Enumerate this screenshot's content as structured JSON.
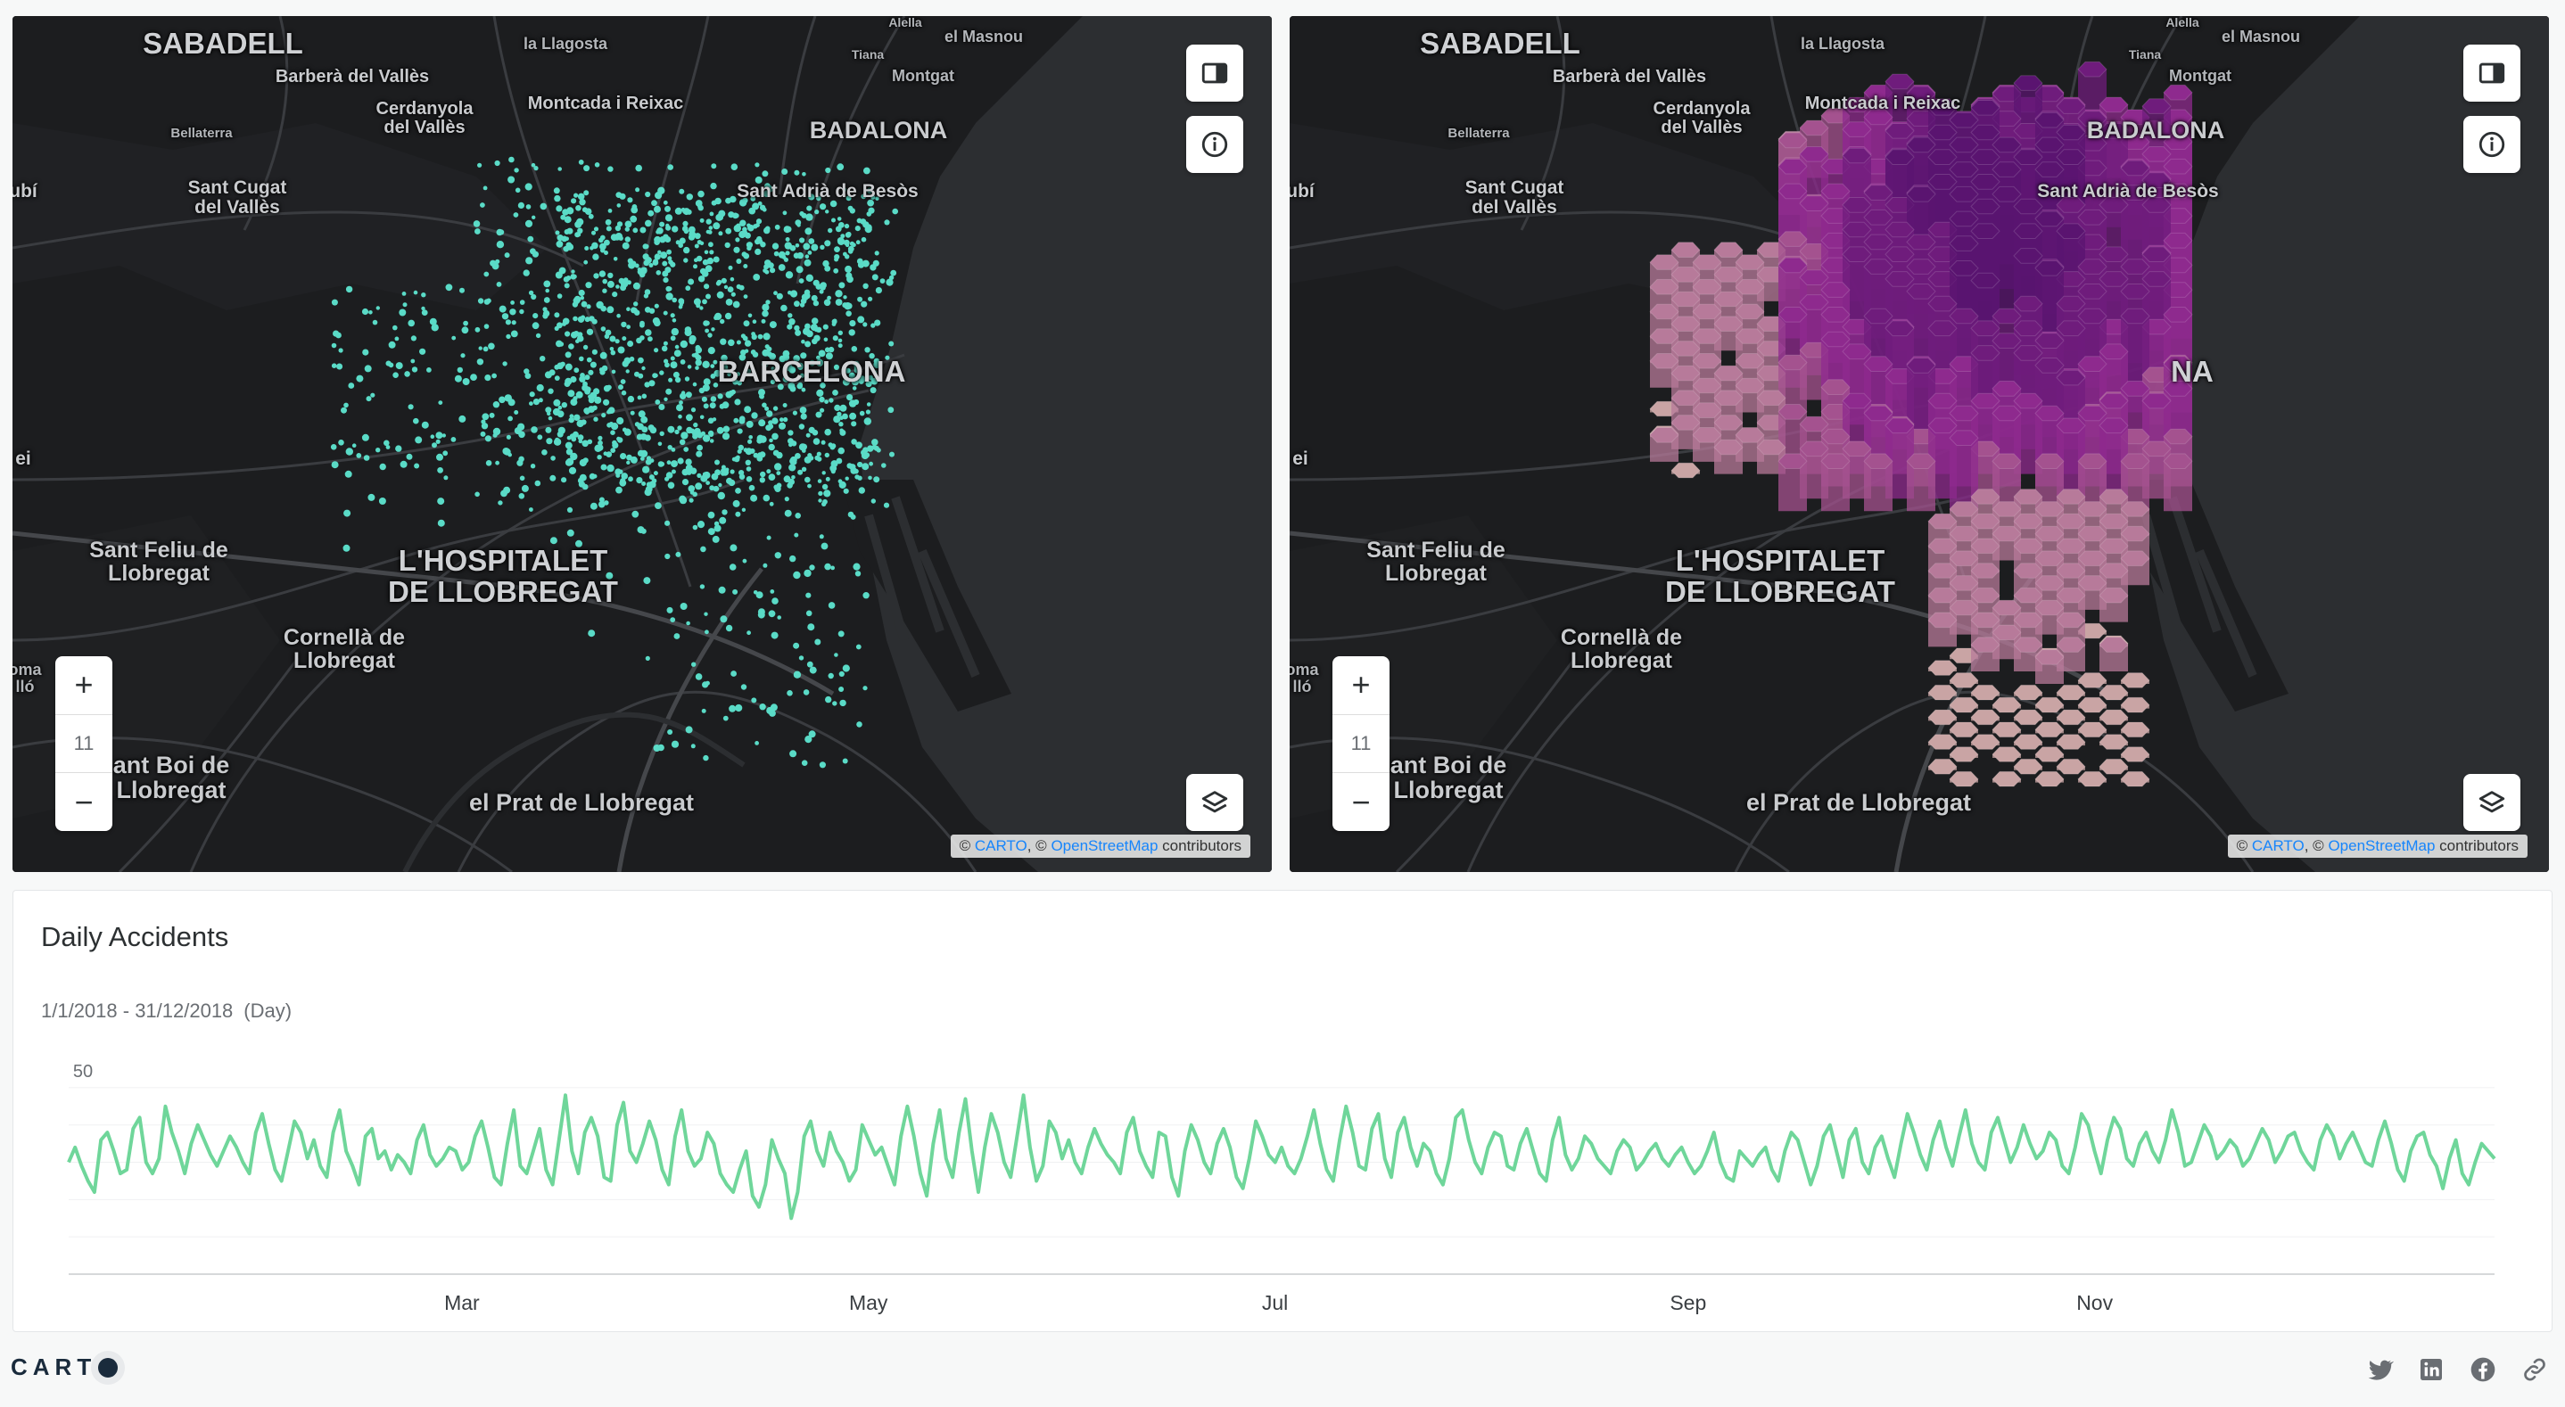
{
  "maps": {
    "left": {
      "zoom_in_label": "+",
      "zoom_level": "11",
      "zoom_out_label": "−",
      "accent": "#5ee6d0"
    },
    "right": {
      "zoom_in_label": "+",
      "zoom_level": "11",
      "zoom_out_label": "−",
      "accent": "#8e2a8e"
    },
    "places": {
      "sabadell": "SABADELL",
      "lla_gosta": "la Llagosta",
      "alella": "Alella",
      "el_masnou": "el Masnou",
      "tiana": "Tiana",
      "montgat": "Montgat",
      "barbera": "Barberà del Vallès",
      "cerdanyola": "Cerdanyola\ndel Vallès",
      "moncada": "Montcada i Reixac",
      "badalona": "BADALONA",
      "bellaterra": "Bellaterra",
      "sant_cugat": "Sant Cugat\ndel Vallès",
      "sant_adria": "Sant Adrià de Besòs",
      "rubi_frag": "ubí",
      "barcelona": "BARCELONA",
      "barcelona_right": "NA",
      "ei_frag": "ei",
      "sant_feliu": "Sant Feliu de\nLlobregat",
      "hospitalet": "L'HOSPITALET\nDE LLOBREGAT",
      "cornella": "Cornellà de\nLlobregat",
      "roma_frag": "oma\nlló",
      "sant_boi": "ant Boi de\nLlobregat",
      "el_prat": "el Prat de Llobregat"
    },
    "attribution": {
      "copy1": "© ",
      "carto": "CARTO",
      "copy2": ", © ",
      "osm": "OpenStreetMap",
      "contrib": " contributors"
    },
    "icons": {
      "legend": "legend-panel-icon",
      "info": "info-icon",
      "layers": "layers-icon"
    }
  },
  "widget": {
    "title": "Daily Accidents",
    "range": "1/1/2018 - 31/12/2018",
    "granularity": "(Day)",
    "line_color": "#6fd69a"
  },
  "chart_data": {
    "type": "line",
    "title": "Daily Accidents",
    "x_range": [
      "2018-01-01",
      "2018-12-31"
    ],
    "x_ticks": [
      "Mar",
      "May",
      "Jul",
      "Sep",
      "Nov"
    ],
    "y_ticks": [
      50
    ],
    "ylim": [
      0,
      55
    ],
    "grid": true,
    "series": [
      {
        "values": [
          30,
          34,
          29,
          25,
          22,
          36,
          38,
          33,
          27,
          28,
          39,
          42,
          30,
          27,
          31,
          45,
          38,
          33,
          27,
          35,
          40,
          36,
          32,
          29,
          33,
          37,
          34,
          30,
          27,
          38,
          43,
          35,
          28,
          25,
          33,
          41,
          38,
          31,
          36,
          29,
          26,
          38,
          44,
          33,
          29,
          24,
          37,
          39,
          31,
          33,
          28,
          32,
          30,
          27,
          36,
          40,
          32,
          29,
          31,
          34,
          33,
          28,
          30,
          37,
          41,
          34,
          26,
          24,
          35,
          44,
          29,
          27,
          33,
          39,
          28,
          24,
          36,
          48,
          33,
          27,
          38,
          42,
          37,
          26,
          25,
          40,
          46,
          33,
          30,
          35,
          41,
          36,
          28,
          24,
          37,
          44,
          33,
          29,
          31,
          38,
          35,
          27,
          24,
          22,
          28,
          33,
          21,
          18,
          24,
          36,
          31,
          27,
          15,
          22,
          37,
          41,
          33,
          29,
          38,
          33,
          30,
          25,
          28,
          40,
          36,
          32,
          34,
          29,
          24,
          37,
          45,
          37,
          27,
          21,
          35,
          44,
          31,
          26,
          38,
          47,
          33,
          22,
          34,
          43,
          38,
          30,
          26,
          37,
          48,
          34,
          25,
          29,
          41,
          38,
          31,
          36,
          30,
          27,
          34,
          39,
          35,
          32,
          30,
          27,
          38,
          42,
          33,
          29,
          26,
          38,
          37,
          26,
          21,
          33,
          40,
          36,
          30,
          27,
          35,
          39,
          34,
          26,
          23,
          31,
          41,
          37,
          32,
          30,
          34,
          29,
          27,
          31,
          37,
          44,
          35,
          28,
          25,
          36,
          45,
          38,
          29,
          28,
          39,
          43,
          31,
          26,
          38,
          42,
          34,
          29,
          35,
          33,
          27,
          24,
          31,
          42,
          44,
          36,
          30,
          27,
          34,
          38,
          37,
          29,
          28,
          35,
          39,
          33,
          27,
          25,
          36,
          42,
          32,
          28,
          31,
          37,
          35,
          31,
          29,
          27,
          33,
          36,
          34,
          28,
          30,
          33,
          35,
          31,
          29,
          32,
          34,
          30,
          27,
          29,
          33,
          38,
          30,
          26,
          25,
          33,
          31,
          29,
          32,
          34,
          28,
          25,
          33,
          38,
          36,
          30,
          24,
          29,
          37,
          40,
          33,
          26,
          36,
          39,
          30,
          27,
          34,
          37,
          31,
          26,
          35,
          43,
          38,
          32,
          28,
          36,
          41,
          34,
          29,
          37,
          44,
          35,
          30,
          28,
          38,
          42,
          36,
          30,
          34,
          40,
          35,
          31,
          33,
          38,
          36,
          29,
          27,
          34,
          43,
          40,
          33,
          27,
          36,
          42,
          39,
          31,
          29,
          35,
          38,
          33,
          30,
          36,
          44,
          38,
          29,
          30,
          35,
          40,
          37,
          31,
          33,
          36,
          34,
          29,
          31,
          35,
          39,
          36,
          30,
          33,
          37,
          38,
          33,
          30,
          28,
          36,
          40,
          37,
          31,
          35,
          38,
          34,
          30,
          29,
          36,
          41,
          35,
          28,
          25,
          33,
          37,
          38,
          32,
          29,
          23,
          31,
          36,
          27,
          24,
          30,
          35,
          33,
          31
        ],
        "color": "#6fd69a"
      }
    ]
  },
  "footer": {
    "logo_text": "CART",
    "icons": [
      "twitter-icon",
      "linkedin-icon",
      "facebook-icon",
      "link-icon"
    ]
  }
}
